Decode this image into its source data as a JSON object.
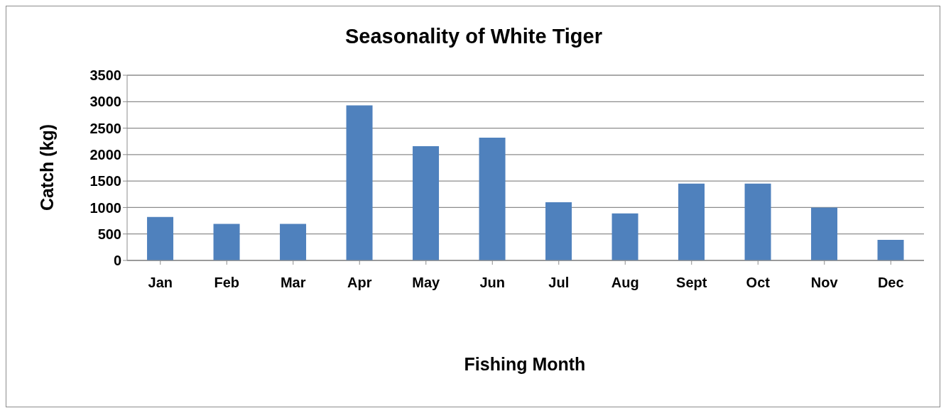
{
  "chart_data": {
    "type": "bar",
    "title": "Seasonality of White Tiger",
    "xlabel": "Fishing Month",
    "ylabel": "Catch (kg)",
    "categories": [
      "Jan",
      "Feb",
      "Mar",
      "Apr",
      "May",
      "Jun",
      "Jul",
      "Aug",
      "Sept",
      "Oct",
      "Nov",
      "Dec"
    ],
    "values": [
      820,
      690,
      690,
      2930,
      2160,
      2320,
      1100,
      890,
      1450,
      1450,
      1000,
      390
    ],
    "color": "#4f81bd",
    "ylim": [
      0,
      3500
    ],
    "yticks": [
      0,
      500,
      1000,
      1500,
      2000,
      2500,
      3000,
      3500
    ],
    "grid": "y",
    "legend": false
  }
}
